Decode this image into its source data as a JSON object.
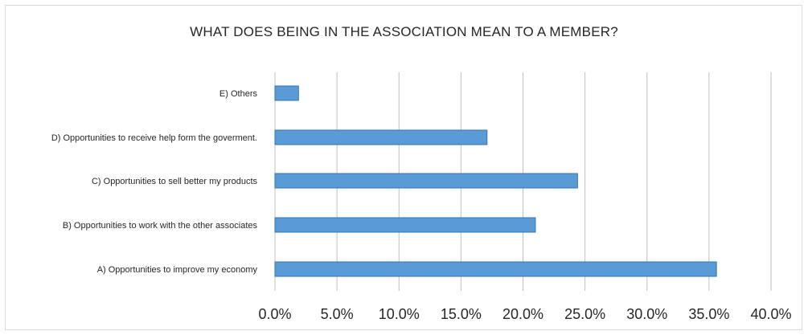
{
  "chart_data": {
    "type": "bar",
    "orientation": "horizontal",
    "title": "WHAT DOES BEING IN THE ASSOCIATION MEAN TO A MEMBER?",
    "categories": [
      "A) Opportunities to improve my economy",
      "B) Opportunities to work with the other associates",
      "C) Opportunities to sell better my products",
      "D) Opportunities to receive help form the goverment.",
      "E) Others"
    ],
    "values": [
      35.6,
      21.0,
      24.4,
      17.1,
      1.9
    ],
    "xlim": [
      0,
      40
    ],
    "xticks": [
      "0.0%",
      "5.0%",
      "10.0%",
      "15.0%",
      "20.0%",
      "25.0%",
      "30.0%",
      "35.0%",
      "40.0%"
    ],
    "grid": true,
    "legend": "none",
    "colors": {
      "bar_fill": "#5b9bd5",
      "bar_stroke": "#2e75b6",
      "grid": "#bfbfbf"
    }
  }
}
